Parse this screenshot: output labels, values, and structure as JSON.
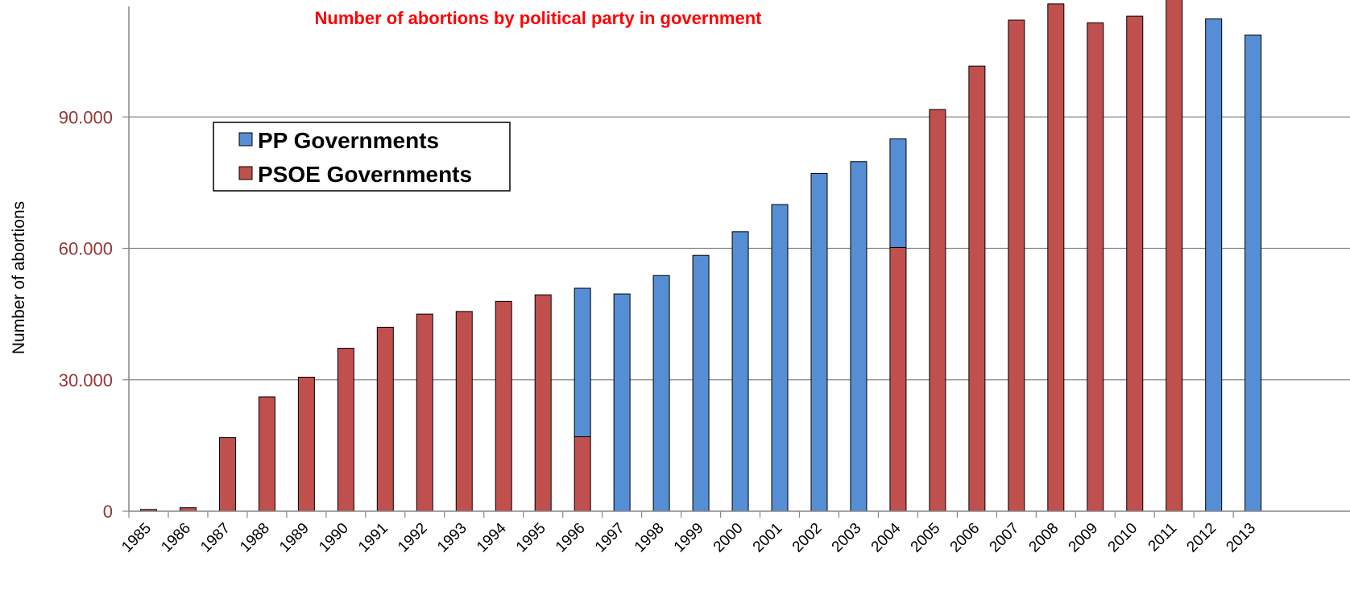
{
  "colors": {
    "pp": "#558ED5",
    "psoe": "#C0504D",
    "title": "#FF0000",
    "tick_label": "#953735",
    "grid": "#868686",
    "axis": "#868686"
  },
  "chart_data": {
    "type": "bar",
    "stacked": true,
    "title": "Number of abortions by political party in government",
    "ylabel": "Number of abortions",
    "xlabel": "",
    "ylim": [
      0,
      115000
    ],
    "yticks": [
      0,
      30000,
      60000,
      90000
    ],
    "ytick_labels": [
      "0",
      "30.000",
      "60.000",
      "90.000"
    ],
    "grid": true,
    "legend_placement": "upper-left",
    "categories": [
      "1985",
      "1986",
      "1987",
      "1988",
      "1989",
      "1990",
      "1991",
      "1992",
      "1993",
      "1994",
      "1995",
      "1996",
      "1997",
      "1998",
      "1999",
      "2000",
      "2001",
      "2002",
      "2003",
      "2004",
      "2005",
      "2006",
      "2007",
      "2008",
      "2009",
      "2010",
      "2011",
      "2012",
      "2013"
    ],
    "series": [
      {
        "name": "PSOE Governments",
        "color_key": "psoe",
        "values": [
          400,
          800,
          16800,
          26100,
          30600,
          37200,
          42000,
          45000,
          45600,
          47900,
          49400,
          17000,
          0,
          0,
          0,
          0,
          0,
          0,
          0,
          60200,
          91700,
          101600,
          112100,
          115800,
          111500,
          113000,
          118600,
          0,
          0
        ]
      },
      {
        "name": "PP Governments",
        "color_key": "pp",
        "values": [
          0,
          0,
          0,
          0,
          0,
          0,
          0,
          0,
          0,
          0,
          0,
          33900,
          49600,
          53800,
          58400,
          63800,
          70000,
          77100,
          79800,
          24800,
          0,
          0,
          0,
          0,
          0,
          0,
          0,
          112400,
          108700
        ]
      }
    ]
  }
}
